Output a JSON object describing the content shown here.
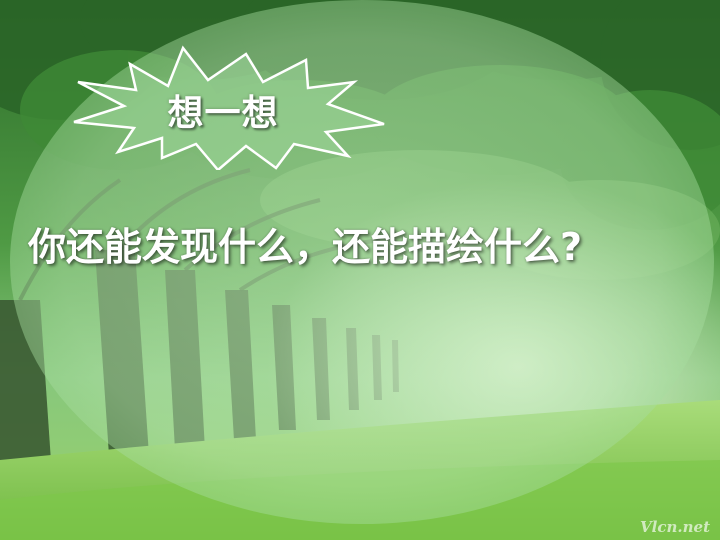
{
  "slide": {
    "title": "想一想",
    "question": "你还能发现什么，还能描绘什么?",
    "watermark": "Vlcn.net"
  },
  "colors": {
    "oval": "#b8e6b4",
    "foliage_dark": "#2f6b2a",
    "foliage_light": "#7fc06f",
    "grass": "#8fd063",
    "text": "#ffffff"
  },
  "icons": {
    "title_burst": "starburst-shape"
  }
}
